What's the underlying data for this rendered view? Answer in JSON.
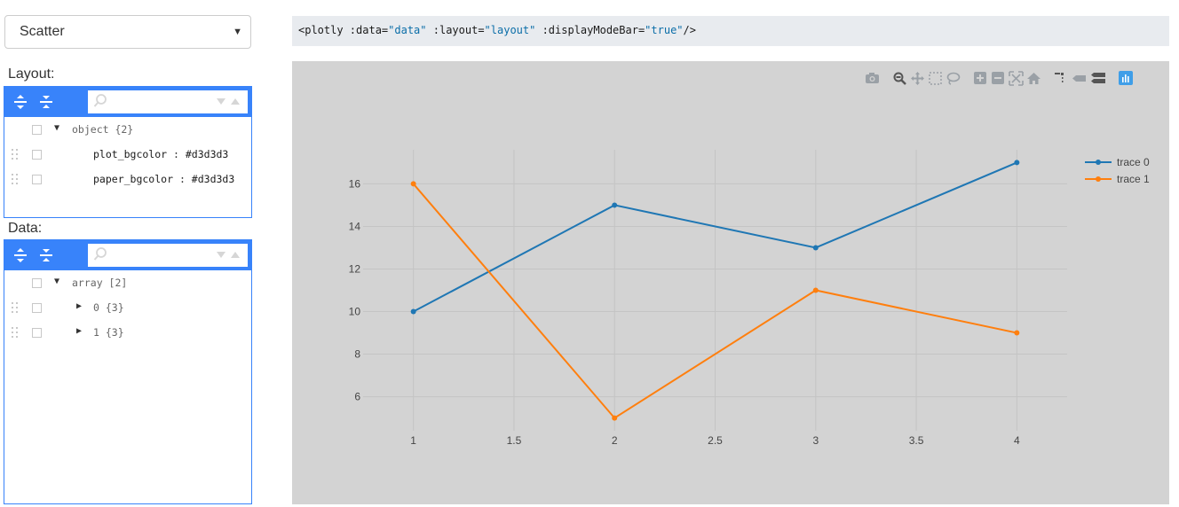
{
  "select": {
    "value": "Scatter"
  },
  "layout_panel": {
    "label": "Layout:",
    "root_key": "object {2}",
    "fields": [
      {
        "key": "plot_bgcolor",
        "value": "#d3d3d3"
      },
      {
        "key": "paper_bgcolor",
        "value": "#d3d3d3"
      }
    ]
  },
  "data_panel": {
    "label": "Data:",
    "root_key": "array [2]",
    "items": [
      {
        "key": "0 {3}"
      },
      {
        "key": "1 {3}"
      }
    ]
  },
  "code": {
    "tag_open": "<plotly :data=",
    "data_val": "\"data\"",
    "layout_attr": " :layout=",
    "layout_val": "\"layout\"",
    "mode_attr": " :displayModeBar=",
    "mode_val": "\"true\"",
    "tag_close": "/>"
  },
  "modebar": {
    "icons": [
      "camera-icon",
      "zoom-icon",
      "pan-icon",
      "box-select-icon",
      "lasso-icon",
      "zoom-in-icon",
      "zoom-out-icon",
      "autoscale-icon",
      "home-icon",
      "spike-lines-icon",
      "hover-closest-icon",
      "hover-compare-icon",
      "plotly-logo-icon"
    ]
  },
  "colors": {
    "trace0": "#1f77b4",
    "trace1": "#ff7f0e",
    "plot_bg": "#d3d3d3",
    "editor_accent": "#3883fa"
  },
  "chart_data": {
    "type": "line",
    "x": [
      1,
      2,
      3,
      4
    ],
    "series": [
      {
        "name": "trace 0",
        "values": [
          10,
          15,
          13,
          17
        ],
        "color": "#1f77b4"
      },
      {
        "name": "trace 1",
        "values": [
          16,
          5,
          11,
          9
        ],
        "color": "#ff7f0e"
      }
    ],
    "xlim": [
      0.75,
      4.25
    ],
    "ylim": [
      4.4,
      17.6
    ],
    "x_ticks": [
      1,
      1.5,
      2,
      2.5,
      3,
      3.5,
      4
    ],
    "x_tick_labels": [
      "1",
      "1.5",
      "2",
      "2.5",
      "3",
      "3.5",
      "4"
    ],
    "y_ticks": [
      6,
      8,
      10,
      12,
      14,
      16
    ],
    "y_tick_labels": [
      "6",
      "8",
      "10",
      "12",
      "14",
      "16"
    ],
    "grid": true,
    "legend_position": "top-right",
    "title": "",
    "xlabel": "",
    "ylabel": ""
  }
}
